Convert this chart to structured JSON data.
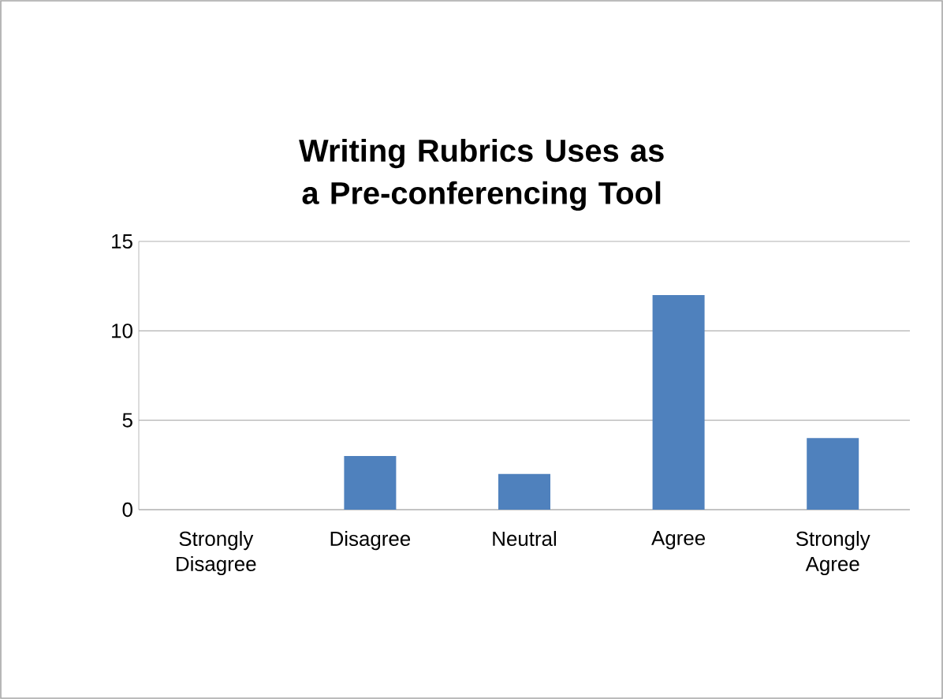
{
  "chart_data": {
    "type": "bar",
    "title": "Writing Rubrics Uses as a Pre-conferencing Tool",
    "categories": [
      "Strongly Disagree",
      "Disagree",
      "Neutral",
      "Agree",
      "Strongly Agree"
    ],
    "values": [
      0,
      3,
      2,
      12,
      4
    ],
    "color": "#4f81bd",
    "ylim": [
      0,
      15
    ],
    "yticks": [
      0,
      5,
      10,
      15
    ],
    "grid": "y"
  }
}
